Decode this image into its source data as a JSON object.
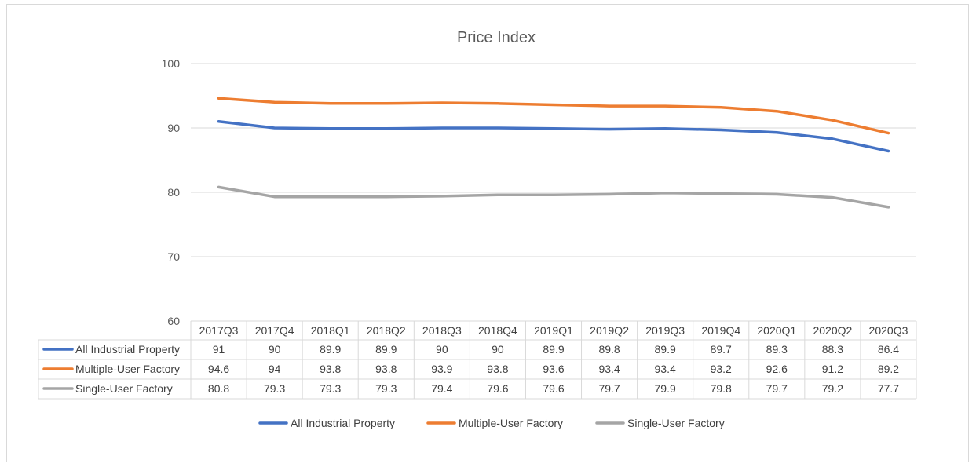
{
  "chart_data": {
    "type": "line",
    "title": "Price Index",
    "categories": [
      "2017Q3",
      "2017Q4",
      "2018Q1",
      "2018Q2",
      "2018Q3",
      "2018Q4",
      "2019Q1",
      "2019Q2",
      "2019Q3",
      "2019Q4",
      "2020Q1",
      "2020Q2",
      "2020Q3"
    ],
    "yticks": [
      "60",
      "70",
      "80",
      "90",
      "100"
    ],
    "ylim": [
      60,
      100
    ],
    "grid": true,
    "legend_position": "bottom",
    "data_table": true,
    "series": [
      {
        "name": "All Industrial Property",
        "color": "#4472c4",
        "values": [
          91,
          90,
          89.9,
          89.9,
          90,
          90,
          89.9,
          89.8,
          89.9,
          89.7,
          89.3,
          88.3,
          86.4
        ]
      },
      {
        "name": "Multiple-User Factory",
        "color": "#ed7d31",
        "values": [
          94.6,
          94,
          93.8,
          93.8,
          93.9,
          93.8,
          93.6,
          93.4,
          93.4,
          93.2,
          92.6,
          91.2,
          89.2
        ]
      },
      {
        "name": "Single-User Factory",
        "color": "#a5a5a5",
        "values": [
          80.8,
          79.3,
          79.3,
          79.3,
          79.4,
          79.6,
          79.6,
          79.7,
          79.9,
          79.8,
          79.7,
          79.2,
          77.7
        ]
      }
    ]
  }
}
